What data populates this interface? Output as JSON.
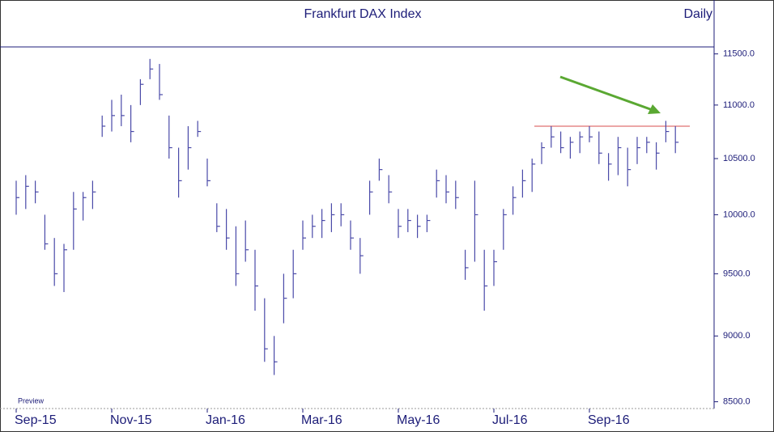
{
  "chart_data": {
    "type": "ohlc",
    "title": "Frankfurt DAX Index",
    "subtitle": "Daily",
    "note": "Preview",
    "log_scale": true,
    "color": "#4a4aa8",
    "categories": [
      "Sep-15",
      null,
      null,
      null,
      null,
      null,
      null,
      null,
      null,
      null,
      "Nov-15",
      null,
      null,
      null,
      null,
      null,
      null,
      null,
      null,
      null,
      "Jan-16",
      null,
      null,
      null,
      null,
      null,
      null,
      null,
      null,
      null,
      "Mar-16",
      null,
      null,
      null,
      null,
      null,
      null,
      null,
      null,
      null,
      "May-16",
      null,
      null,
      null,
      null,
      null,
      null,
      null,
      null,
      null,
      "Jul-16",
      null,
      null,
      null,
      null,
      null,
      null,
      null,
      null,
      null,
      "Sep-16",
      null,
      null,
      null,
      null,
      null,
      null,
      null,
      null,
      null
    ],
    "series": [
      {
        "name": "High",
        "values": [
          10300,
          10350,
          10300,
          10000,
          9800,
          9750,
          10200,
          10200,
          10300,
          10900,
          11050,
          11100,
          11000,
          11250,
          11450,
          11400,
          10900,
          10600,
          10800,
          10850,
          10500,
          10100,
          10050,
          9900,
          9950,
          9700,
          9300,
          9000,
          9500,
          9700,
          9950,
          10000,
          10050,
          10100,
          10100,
          9950,
          9800,
          10300,
          10500,
          10350,
          10050,
          10050,
          10000,
          10000,
          10400,
          10350,
          10300,
          9700,
          10300,
          9700,
          9700,
          10050,
          10250,
          10400,
          10500,
          10650,
          10800,
          10750,
          10700,
          10750,
          10800,
          10750,
          10550,
          10700,
          10600,
          10700,
          10700,
          10650,
          10850,
          10800
        ]
      },
      {
        "name": "Low",
        "values": [
          10000,
          10050,
          10100,
          9700,
          9400,
          9350,
          9700,
          9950,
          10050,
          10700,
          10750,
          10800,
          10650,
          11000,
          11250,
          11050,
          10500,
          10150,
          10400,
          10700,
          10250,
          9850,
          9700,
          9400,
          9600,
          9200,
          8800,
          8700,
          9100,
          9300,
          9700,
          9800,
          9800,
          9850,
          9900,
          9700,
          9500,
          10000,
          10300,
          10100,
          9800,
          9850,
          9800,
          9850,
          10150,
          10100,
          10050,
          9450,
          9600,
          9200,
          9400,
          9700,
          10000,
          10150,
          10200,
          10450,
          10600,
          10550,
          10500,
          10550,
          10650,
          10450,
          10300,
          10350,
          10250,
          10450,
          10550,
          10400,
          10650,
          10550
        ]
      },
      {
        "name": "Close",
        "values": [
          10150,
          10250,
          10200,
          9750,
          9500,
          9700,
          10050,
          10150,
          10200,
          10800,
          10900,
          10900,
          10750,
          11200,
          11350,
          11100,
          10600,
          10300,
          10600,
          10750,
          10300,
          9900,
          9800,
          9500,
          9700,
          9400,
          8900,
          8800,
          9300,
          9500,
          9800,
          9900,
          9950,
          10000,
          10000,
          9800,
          9650,
          10200,
          10400,
          10200,
          9900,
          9950,
          9900,
          9950,
          10300,
          10200,
          10150,
          9550,
          10000,
          9400,
          9600,
          10000,
          10150,
          10300,
          10450,
          10600,
          10700,
          10600,
          10650,
          10700,
          10700,
          10550,
          10450,
          10600,
          10400,
          10600,
          10650,
          10550,
          10750,
          10650
        ]
      }
    ],
    "reference_line": {
      "value": 10800,
      "color": "#e07070"
    },
    "ylim": [
      8450,
      11570
    ],
    "yticks": [
      {
        "value": 8500,
        "label": "8500.0"
      },
      {
        "value": 9000,
        "label": "9000.0"
      },
      {
        "value": 9500,
        "label": "9500.0"
      },
      {
        "value": 10000,
        "label": "10000.0"
      },
      {
        "value": 10500,
        "label": "10500.0"
      },
      {
        "value": 11000,
        "label": "11000.0"
      },
      {
        "value": 11500,
        "label": "11500.0"
      }
    ]
  }
}
